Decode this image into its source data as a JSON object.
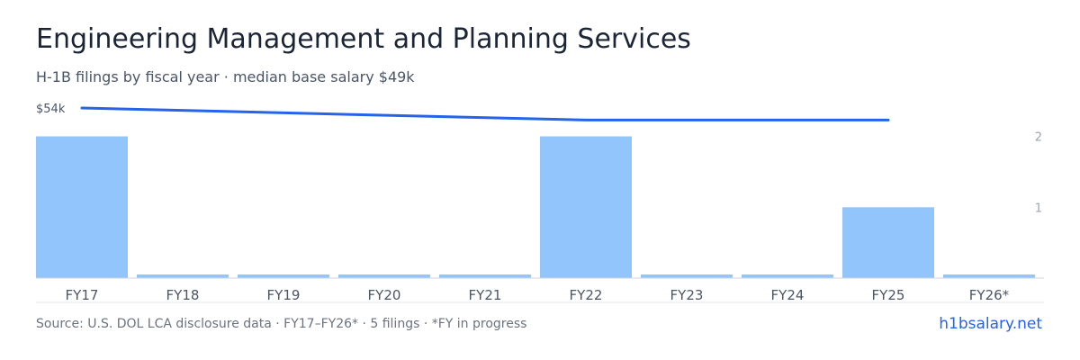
{
  "title": "Engineering Management and Planning Services",
  "subtitle": "H-1B filings by fiscal year · median base salary $49k",
  "footer": {
    "source": "Source: U.S. DOL LCA disclosure data · FY17–FY26* · 5 filings · *FY in progress",
    "brand": "h1bsalary.net"
  },
  "colors": {
    "bar": "#93c5fd",
    "line": "#2563eb",
    "axis": "#d1d5db",
    "tick": "#9ca3af"
  },
  "chart_data": {
    "type": "bar",
    "categories": [
      "FY17",
      "FY18",
      "FY19",
      "FY20",
      "FY21",
      "FY22",
      "FY23",
      "FY24",
      "FY25",
      "FY26*"
    ],
    "series": [
      {
        "values": [
          2,
          0,
          0,
          0,
          0,
          2,
          0,
          0,
          1,
          0
        ],
        "axis": "right"
      },
      {
        "type": "line",
        "values": [
          54,
          null,
          null,
          null,
          null,
          50,
          null,
          null,
          50,
          null
        ],
        "axis": "left"
      }
    ],
    "right_axis": {
      "ticks": [
        1,
        2
      ],
      "labels": [
        "1",
        "2"
      ],
      "range": [
        0,
        2.4
      ]
    },
    "left_axis": {
      "ticks": [
        54
      ],
      "labels": [
        "$54k"
      ],
      "range": [
        0,
        54
      ]
    },
    "grid": false
  }
}
